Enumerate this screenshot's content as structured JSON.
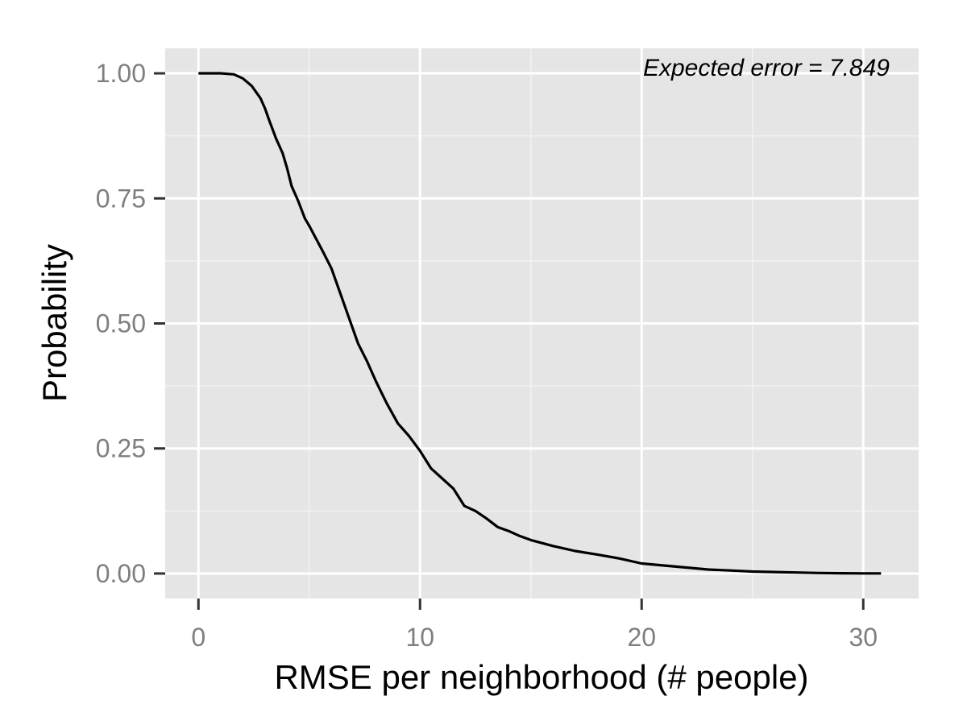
{
  "chart_data": {
    "type": "line",
    "title": "",
    "xlabel": "RMSE per neighborhood (# people)",
    "ylabel": "Probability",
    "xlim": [
      -1.5,
      32.5
    ],
    "ylim": [
      -0.05,
      1.05
    ],
    "x_ticks": [
      0,
      10,
      20,
      30
    ],
    "x_tick_labels": [
      "0",
      "10",
      "20",
      "30"
    ],
    "y_ticks": [
      0,
      0.25,
      0.5,
      0.75,
      1
    ],
    "y_tick_labels": [
      "0.00",
      "0.25",
      "0.50",
      "0.75",
      "1.00"
    ],
    "grid": true,
    "annotation": "Expected error = 7.849",
    "colors": {
      "panel": "#e5e5e5",
      "grid_major": "#ffffff",
      "grid_minor": "#f2f2f2",
      "line": "#000000",
      "tick_text": "#7f7f7f"
    },
    "series": [
      {
        "x": [
          0,
          1,
          1.6,
          2.0,
          2.4,
          2.8,
          3.0,
          3.2,
          3.5,
          3.8,
          4.0,
          4.2,
          4.5,
          4.8,
          5.0,
          5.3,
          5.6,
          6.0,
          6.4,
          6.8,
          7.2,
          7.6,
          8.0,
          8.5,
          9.0,
          9.5,
          10.0,
          10.5,
          11.0,
          11.5,
          12.0,
          12.5,
          13.0,
          13.5,
          14.0,
          14.5,
          15.0,
          16.0,
          17.0,
          18.0,
          19.0,
          20.0,
          21.0,
          22.0,
          23.0,
          24.0,
          25.0,
          26.0,
          27.0,
          28.0,
          29.0,
          30.0,
          30.8
        ],
        "y": [
          1.0,
          1.0,
          0.998,
          0.99,
          0.975,
          0.95,
          0.93,
          0.905,
          0.87,
          0.84,
          0.81,
          0.775,
          0.745,
          0.71,
          0.695,
          0.67,
          0.645,
          0.61,
          0.56,
          0.51,
          0.46,
          0.425,
          0.385,
          0.34,
          0.3,
          0.275,
          0.245,
          0.21,
          0.19,
          0.17,
          0.135,
          0.125,
          0.11,
          0.093,
          0.085,
          0.075,
          0.067,
          0.055,
          0.045,
          0.038,
          0.03,
          0.02,
          0.016,
          0.012,
          0.008,
          0.006,
          0.004,
          0.003,
          0.002,
          0.001,
          0.0005,
          0.0003,
          0.0002
        ]
      }
    ]
  }
}
